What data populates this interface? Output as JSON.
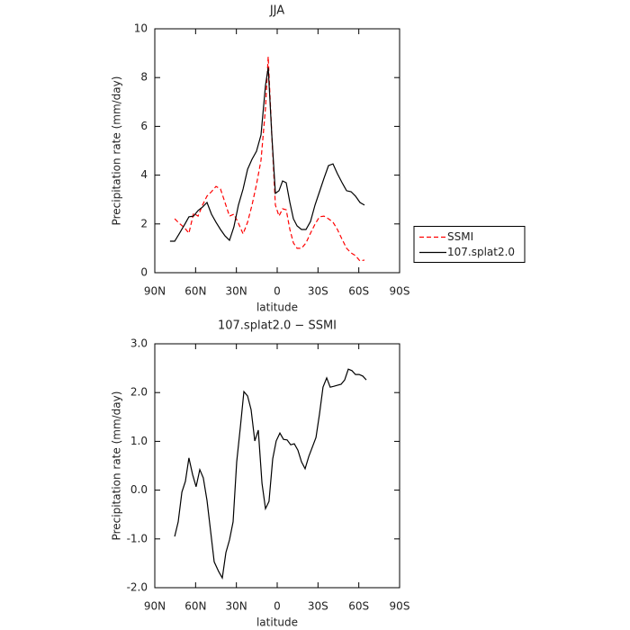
{
  "chart_data": [
    {
      "type": "line",
      "title": "JJA",
      "xlabel": "latitude",
      "ylabel": "Precipitation rate (mm/day)",
      "xlim": [
        90,
        -90
      ],
      "xticks": [
        {
          "value": 90,
          "label": "90N"
        },
        {
          "value": 60,
          "label": "60N"
        },
        {
          "value": 30,
          "label": "30N"
        },
        0,
        {
          "value": -30,
          "label": "30S"
        },
        {
          "value": -60,
          "label": "60S"
        },
        {
          "value": -90,
          "label": "90S"
        }
      ],
      "ylim": [
        0,
        10
      ],
      "yticks": [
        0,
        2,
        4,
        6,
        8,
        10
      ],
      "grid": false,
      "legend": "right",
      "x": [
        78.8,
        75.4,
        72.1,
        68.2,
        64.9,
        61.5,
        58.2,
        54.9,
        51.6,
        48.3,
        45.0,
        41.7,
        38.4,
        35.1,
        31.8,
        28.5,
        25.1,
        21.8,
        18.5,
        15.2,
        11.9,
        8.6,
        6.6,
        4.0,
        1.3,
        -1.3,
        -4.0,
        -6.6,
        -9.3,
        -11.9,
        -14.6,
        -17.9,
        -21.2,
        -24.5,
        -27.8,
        -31.1,
        -34.4,
        -37.7,
        -41.0,
        -44.3,
        -47.7,
        -51.0,
        -54.3,
        -57.6,
        -60.9,
        -64.2
      ],
      "series": [
        {
          "name": "SSMI",
          "color": "#ff0000",
          "dashed": true,
          "values": [
            null,
            2.21,
            2.03,
            1.85,
            1.62,
            2.44,
            2.32,
            2.77,
            3.14,
            3.32,
            3.54,
            3.43,
            2.88,
            2.32,
            2.4,
            2.03,
            1.59,
            2.07,
            2.77,
            3.62,
            4.61,
            6.75,
            8.86,
            5.65,
            2.77,
            2.32,
            2.62,
            2.58,
            1.77,
            1.22,
            1.0,
            1.0,
            1.22,
            1.62,
            1.99,
            2.29,
            2.32,
            2.21,
            2.07,
            1.77,
            1.37,
            1.0,
            0.81,
            0.7,
            0.48,
            0.52
          ]
        },
        {
          "name": "107.splat2.0",
          "color": "#000000",
          "dashed": false,
          "values": [
            1.29,
            1.29,
            1.59,
            1.96,
            2.29,
            2.32,
            2.55,
            2.69,
            2.88,
            2.4,
            2.07,
            1.77,
            1.51,
            1.33,
            1.88,
            2.77,
            3.43,
            4.24,
            4.65,
            4.98,
            5.65,
            7.68,
            8.41,
            5.65,
            3.25,
            3.36,
            3.76,
            3.69,
            2.88,
            2.21,
            1.92,
            1.77,
            1.77,
            2.1,
            2.77,
            3.32,
            3.87,
            4.39,
            4.46,
            4.06,
            3.69,
            3.36,
            3.32,
            3.14,
            2.88,
            2.77
          ]
        }
      ]
    },
    {
      "type": "line",
      "title": "107.splat2.0 − SSMI",
      "xlabel": "latitude",
      "ylabel": "Precipitation rate (mm/day)",
      "xlim": [
        90,
        -90
      ],
      "xticks": [
        {
          "value": 90,
          "label": "90N"
        },
        {
          "value": 60,
          "label": "60N"
        },
        {
          "value": 30,
          "label": "30N"
        },
        0,
        {
          "value": -30,
          "label": "30S"
        },
        {
          "value": -60,
          "label": "60S"
        },
        {
          "value": -90,
          "label": "90S"
        }
      ],
      "ylim": [
        -2,
        3
      ],
      "yticks": [
        {
          "value": 3,
          "label": "3.0"
        },
        {
          "value": 2,
          "label": "2.0"
        },
        {
          "value": 1,
          "label": "1.0"
        },
        {
          "value": 0,
          "label": "0.0"
        },
        {
          "value": -1,
          "label": "-1.0"
        },
        {
          "value": -2,
          "label": "-2.0"
        }
      ],
      "grid": false,
      "x": [
        75.4,
        72.8,
        70.1,
        67.5,
        64.9,
        62.2,
        59.6,
        56.9,
        54.3,
        51.6,
        49.0,
        46.3,
        43.0,
        40.4,
        37.7,
        35.1,
        32.4,
        29.8,
        27.1,
        24.5,
        21.8,
        19.2,
        16.5,
        13.9,
        11.2,
        8.6,
        6.0,
        3.3,
        0.7,
        -2.0,
        -4.6,
        -7.3,
        -9.9,
        -12.6,
        -15.2,
        -17.9,
        -20.5,
        -23.2,
        -25.8,
        -28.5,
        -31.1,
        -33.7,
        -36.4,
        -39.0,
        -41.7,
        -44.3,
        -47.0,
        -49.6,
        -52.3,
        -54.9,
        -57.6,
        -60.2,
        -62.9,
        -65.5
      ],
      "series": [
        {
          "color": "#000000",
          "dashed": false,
          "values": [
            -0.95,
            -0.65,
            -0.04,
            0.18,
            0.66,
            0.32,
            0.07,
            0.42,
            0.25,
            -0.21,
            -0.84,
            -1.47,
            -1.67,
            -1.8,
            -1.28,
            -1.02,
            -0.65,
            0.58,
            1.28,
            2.02,
            1.93,
            1.65,
            1.01,
            1.23,
            0.14,
            -0.38,
            -0.23,
            0.64,
            1.01,
            1.17,
            1.04,
            1.03,
            0.93,
            0.95,
            0.82,
            0.58,
            0.44,
            0.69,
            0.88,
            1.08,
            1.56,
            2.11,
            2.3,
            2.11,
            2.13,
            2.15,
            2.17,
            2.26,
            2.48,
            2.45,
            2.37,
            2.37,
            2.34,
            2.26
          ]
        }
      ]
    }
  ]
}
